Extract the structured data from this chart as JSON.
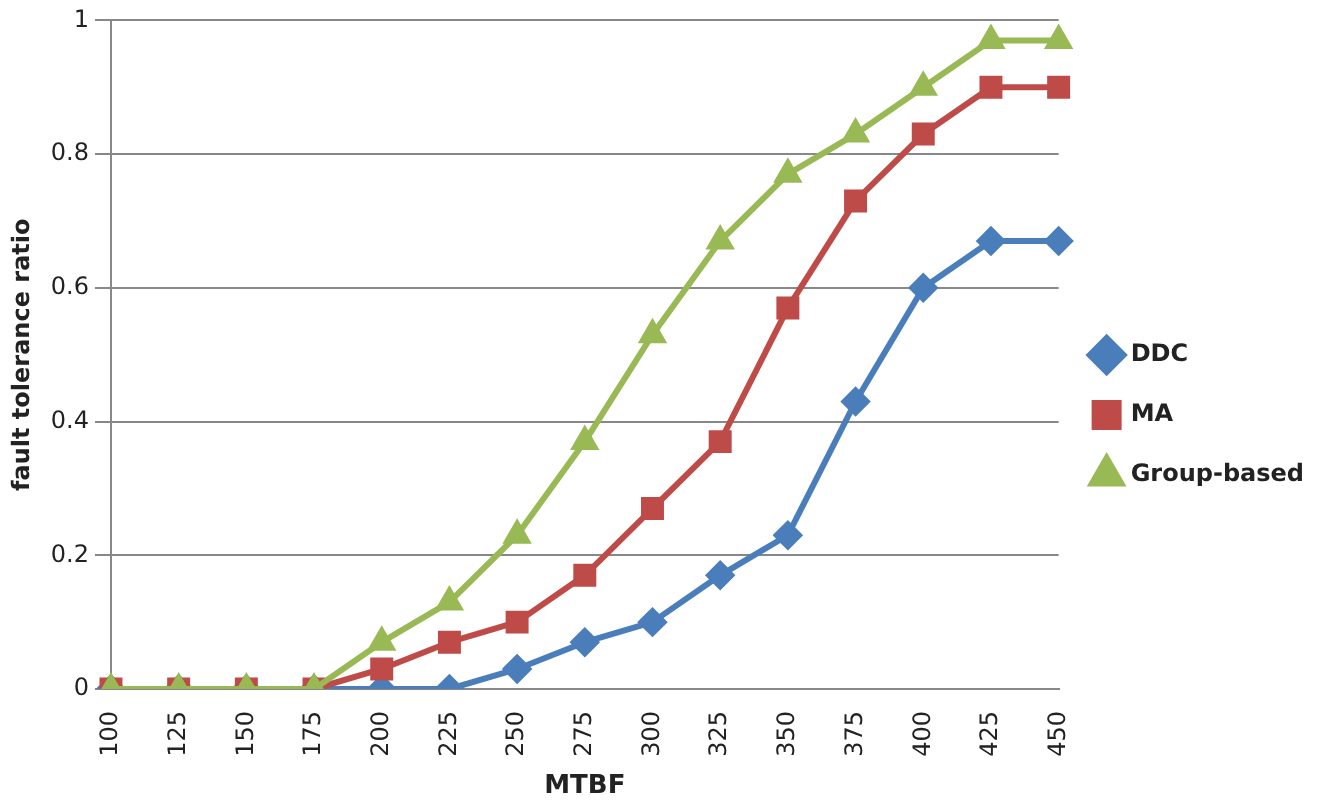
{
  "chart_data": {
    "type": "line",
    "xlabel": "MTBF",
    "ylabel": "fault tolerance ratio",
    "categories": [
      "100",
      "125",
      "150",
      "175",
      "200",
      "225",
      "250",
      "275",
      "300",
      "325",
      "350",
      "375",
      "400",
      "425",
      "450"
    ],
    "series": [
      {
        "name": "DDC",
        "color": "#4a7ebb",
        "marker": "diamond",
        "values": [
          0,
          0,
          0,
          0,
          0,
          0,
          0.03,
          0.07,
          0.1,
          0.17,
          0.23,
          0.43,
          0.6,
          0.67,
          0.67
        ]
      },
      {
        "name": "MA",
        "color": "#be4b48",
        "marker": "square",
        "values": [
          0,
          0,
          0,
          0,
          0.03,
          0.07,
          0.1,
          0.17,
          0.27,
          0.37,
          0.57,
          0.73,
          0.83,
          0.9,
          0.9
        ]
      },
      {
        "name": "Group-based",
        "color": "#98b954",
        "marker": "triangle",
        "values": [
          0,
          0,
          0,
          0,
          0.07,
          0.13,
          0.23,
          0.37,
          0.53,
          0.67,
          0.77,
          0.83,
          0.9,
          0.97,
          0.97
        ]
      }
    ],
    "ylim": [
      0,
      1
    ],
    "yticks": [
      0,
      0.2,
      0.4,
      0.6,
      0.8,
      1
    ],
    "grid": "y",
    "legend": "right"
  }
}
